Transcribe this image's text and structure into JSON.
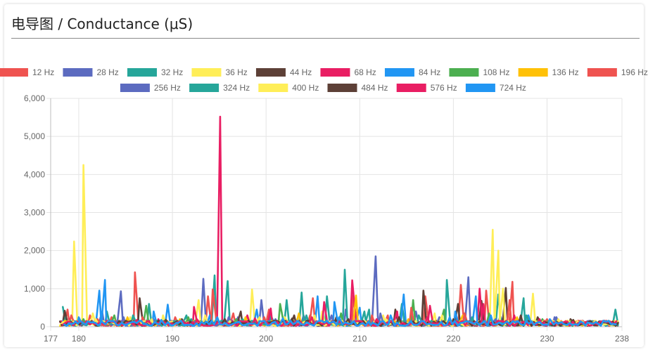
{
  "card": {
    "title": "电导图 / Conductance (μS)"
  },
  "chart_data": {
    "type": "line",
    "xlim": [
      177,
      238
    ],
    "ylim": [
      0,
      6000
    ],
    "x_ticks": [
      177,
      180,
      190,
      200,
      210,
      220,
      230,
      238
    ],
    "y_ticks": [
      0,
      1000,
      2000,
      3000,
      4000,
      5000,
      6000
    ],
    "y_tick_labels": [
      "0",
      "1,000",
      "2,000",
      "3,000",
      "4,000",
      "5,000",
      "6,000"
    ],
    "grid": true,
    "legend_position": "top",
    "series": [
      {
        "name": "12 Hz",
        "color": "#ef5350",
        "spikes": [
          [
            178.8,
            450
          ],
          [
            181.2,
            300
          ],
          [
            183.5,
            250
          ],
          [
            186.0,
            1430
          ],
          [
            190.3,
            250
          ],
          [
            193.8,
            800
          ],
          [
            196.5,
            350
          ],
          [
            200.3,
            450
          ],
          [
            205.0,
            750
          ],
          [
            209.3,
            820
          ],
          [
            213.0,
            300
          ],
          [
            217.0,
            800
          ],
          [
            220.8,
            1100
          ],
          [
            223.5,
            950
          ],
          [
            226.3,
            1180
          ],
          [
            230.0,
            200
          ],
          [
            234.0,
            80
          ]
        ]
      },
      {
        "name": "28 Hz",
        "color": "#5c6bc0",
        "spikes": [
          [
            178.5,
            150
          ],
          [
            182.5,
            400
          ],
          [
            184.5,
            930
          ],
          [
            188.0,
            200
          ],
          [
            193.3,
            1260
          ],
          [
            197.0,
            250
          ],
          [
            199.5,
            700
          ],
          [
            204.0,
            300
          ],
          [
            208.5,
            450
          ],
          [
            211.7,
            1850
          ],
          [
            216.0,
            400
          ],
          [
            221.6,
            1300
          ],
          [
            225.0,
            300
          ],
          [
            231.0,
            250
          ],
          [
            235.5,
            100
          ]
        ]
      },
      {
        "name": "32 Hz",
        "color": "#26a69a",
        "spikes": [
          [
            178.3,
            520
          ],
          [
            183.0,
            400
          ],
          [
            187.5,
            600
          ],
          [
            191.5,
            300
          ],
          [
            194.5,
            1350
          ],
          [
            195.9,
            1200
          ],
          [
            200.5,
            300
          ],
          [
            202.2,
            700
          ],
          [
            203.8,
            900
          ],
          [
            206.5,
            800
          ],
          [
            208.4,
            1500
          ],
          [
            211.0,
            450
          ],
          [
            214.5,
            600
          ],
          [
            219.3,
            1230
          ],
          [
            224.8,
            850
          ],
          [
            227.5,
            750
          ],
          [
            235.5,
            120
          ],
          [
            237.3,
            450
          ]
        ]
      },
      {
        "name": "36 Hz",
        "color": "#ffee58",
        "spikes": [
          [
            179.5,
            2240
          ],
          [
            180.5,
            4250
          ],
          [
            181.5,
            350
          ],
          [
            185.5,
            250
          ],
          [
            189.0,
            300
          ],
          [
            192.8,
            700
          ],
          [
            198.5,
            980
          ],
          [
            202.0,
            250
          ],
          [
            206.0,
            400
          ],
          [
            212.5,
            300
          ],
          [
            218.0,
            350
          ],
          [
            224.2,
            2550
          ],
          [
            224.8,
            2000
          ],
          [
            226.0,
            600
          ],
          [
            228.5,
            870
          ],
          [
            233.0,
            150
          ]
        ]
      },
      {
        "name": "44 Hz",
        "color": "#5d4037",
        "spikes": [
          [
            178.5,
            420
          ],
          [
            186.5,
            750
          ],
          [
            191.0,
            200
          ],
          [
            197.3,
            400
          ],
          [
            203.0,
            300
          ],
          [
            207.5,
            250
          ],
          [
            213.8,
            450
          ],
          [
            216.8,
            950
          ],
          [
            220.5,
            600
          ],
          [
            223.0,
            680
          ],
          [
            225.6,
            1020
          ],
          [
            229.0,
            250
          ],
          [
            232.5,
            200
          ]
        ]
      },
      {
        "name": "68 Hz",
        "color": "#e91e63",
        "spikes": [
          [
            179.0,
            200
          ],
          [
            184.0,
            150
          ],
          [
            188.5,
            200
          ],
          [
            192.3,
            520
          ],
          [
            195.1,
            5520
          ],
          [
            198.0,
            300
          ],
          [
            200.5,
            480
          ],
          [
            206.2,
            650
          ],
          [
            209.2,
            1220
          ],
          [
            214.0,
            400
          ],
          [
            217.5,
            550
          ],
          [
            222.8,
            1000
          ],
          [
            226.5,
            300
          ],
          [
            231.5,
            150
          ]
        ]
      },
      {
        "name": "84 Hz",
        "color": "#2196f3",
        "spikes": [
          [
            180.0,
            250
          ],
          [
            182.2,
            950
          ],
          [
            182.8,
            1230
          ],
          [
            188.0,
            400
          ],
          [
            189.5,
            580
          ],
          [
            194.0,
            300
          ],
          [
            199.0,
            450
          ],
          [
            205.5,
            800
          ],
          [
            207.3,
            650
          ],
          [
            210.0,
            500
          ],
          [
            214.7,
            850
          ],
          [
            220.2,
            400
          ],
          [
            222.4,
            800
          ],
          [
            228.0,
            300
          ],
          [
            234.5,
            100
          ]
        ]
      },
      {
        "name": "108 Hz",
        "color": "#4caf50",
        "spikes": [
          [
            180.5,
            200
          ],
          [
            183.8,
            300
          ],
          [
            187.2,
            550
          ],
          [
            191.7,
            250
          ],
          [
            196.8,
            200
          ],
          [
            201.5,
            600
          ],
          [
            208.0,
            350
          ],
          [
            215.7,
            700
          ],
          [
            219.0,
            450
          ],
          [
            223.8,
            350
          ],
          [
            229.5,
            200
          ]
        ]
      },
      {
        "name": "136 Hz",
        "color": "#ffc107",
        "spikes": [
          [
            181.0,
            150
          ],
          [
            185.2,
            250
          ],
          [
            190.8,
            200
          ],
          [
            197.8,
            250
          ],
          [
            203.5,
            350
          ],
          [
            209.6,
            820
          ],
          [
            215.2,
            200
          ],
          [
            221.0,
            300
          ],
          [
            226.8,
            250
          ],
          [
            233.5,
            120
          ]
        ]
      },
      {
        "name": "196 Hz",
        "color": "#ef5350",
        "spikes": [
          [
            179.2,
            300
          ],
          [
            182.0,
            200
          ],
          [
            186.8,
            250
          ],
          [
            194.3,
            980
          ],
          [
            199.8,
            250
          ],
          [
            204.7,
            300
          ],
          [
            211.3,
            300
          ],
          [
            215.5,
            500
          ],
          [
            221.2,
            350
          ],
          [
            226.0,
            700
          ],
          [
            232.0,
            150
          ]
        ]
      },
      {
        "name": "256 Hz",
        "color": "#5c6bc0",
        "spikes": [
          [
            178.9,
            100
          ],
          [
            184.8,
            250
          ],
          [
            190.0,
            150
          ],
          [
            196.0,
            250
          ],
          [
            201.0,
            200
          ],
          [
            207.0,
            300
          ],
          [
            212.2,
            350
          ],
          [
            218.5,
            250
          ],
          [
            224.5,
            200
          ],
          [
            230.8,
            250
          ],
          [
            236.0,
            100
          ]
        ]
      },
      {
        "name": "324 Hz",
        "color": "#26a69a",
        "spikes": [
          [
            180.2,
            150
          ],
          [
            185.8,
            300
          ],
          [
            192.0,
            200
          ],
          [
            197.5,
            200
          ],
          [
            204.3,
            300
          ],
          [
            210.5,
            400
          ],
          [
            216.3,
            300
          ],
          [
            222.0,
            250
          ],
          [
            227.8,
            300
          ],
          [
            234.0,
            100
          ]
        ]
      },
      {
        "name": "400 Hz",
        "color": "#ffee58",
        "spikes": [
          [
            181.8,
            200
          ],
          [
            187.8,
            200
          ],
          [
            193.5,
            300
          ],
          [
            199.3,
            250
          ],
          [
            205.2,
            300
          ],
          [
            212.8,
            200
          ],
          [
            218.8,
            300
          ],
          [
            225.3,
            1000
          ],
          [
            231.2,
            200
          ],
          [
            236.5,
            80
          ]
        ]
      },
      {
        "name": "484 Hz",
        "color": "#5d4037",
        "spikes": [
          [
            179.8,
            120
          ],
          [
            184.3,
            150
          ],
          [
            189.3,
            180
          ],
          [
            195.6,
            200
          ],
          [
            202.8,
            220
          ],
          [
            208.8,
            200
          ],
          [
            214.2,
            250
          ],
          [
            220.0,
            200
          ],
          [
            227.2,
            300
          ],
          [
            232.8,
            180
          ]
        ]
      },
      {
        "name": "576 Hz",
        "color": "#e91e63",
        "spikes": [
          [
            180.8,
            150
          ],
          [
            186.2,
            180
          ],
          [
            192.6,
            200
          ],
          [
            198.8,
            220
          ],
          [
            204.9,
            250
          ],
          [
            211.8,
            200
          ],
          [
            217.2,
            250
          ],
          [
            223.2,
            600
          ],
          [
            229.2,
            200
          ],
          [
            235.0,
            100
          ]
        ]
      },
      {
        "name": "724 Hz",
        "color": "#2196f3",
        "spikes": [
          [
            182.4,
            150
          ],
          [
            188.8,
            180
          ],
          [
            194.8,
            250
          ],
          [
            201.8,
            220
          ],
          [
            207.8,
            250
          ],
          [
            213.3,
            300
          ],
          [
            219.6,
            250
          ],
          [
            224.0,
            300
          ],
          [
            230.3,
            200
          ],
          [
            237.0,
            80
          ]
        ]
      }
    ]
  }
}
